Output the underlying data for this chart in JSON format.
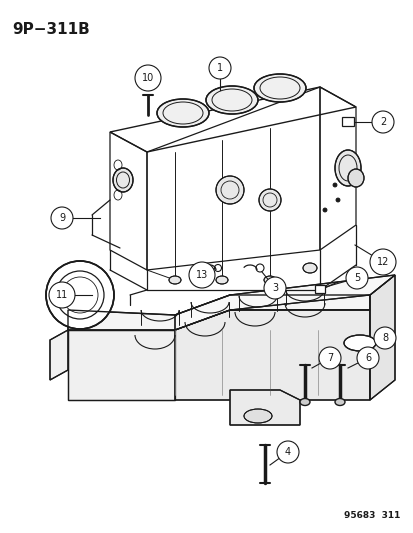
{
  "title": "9P−311B",
  "footer": "95683  311",
  "bg_color": "#ffffff",
  "lc": "#1a1a1a",
  "figsize": [
    4.14,
    5.33
  ],
  "dpi": 100,
  "xlim": [
    0,
    414
  ],
  "ylim": [
    0,
    533
  ]
}
